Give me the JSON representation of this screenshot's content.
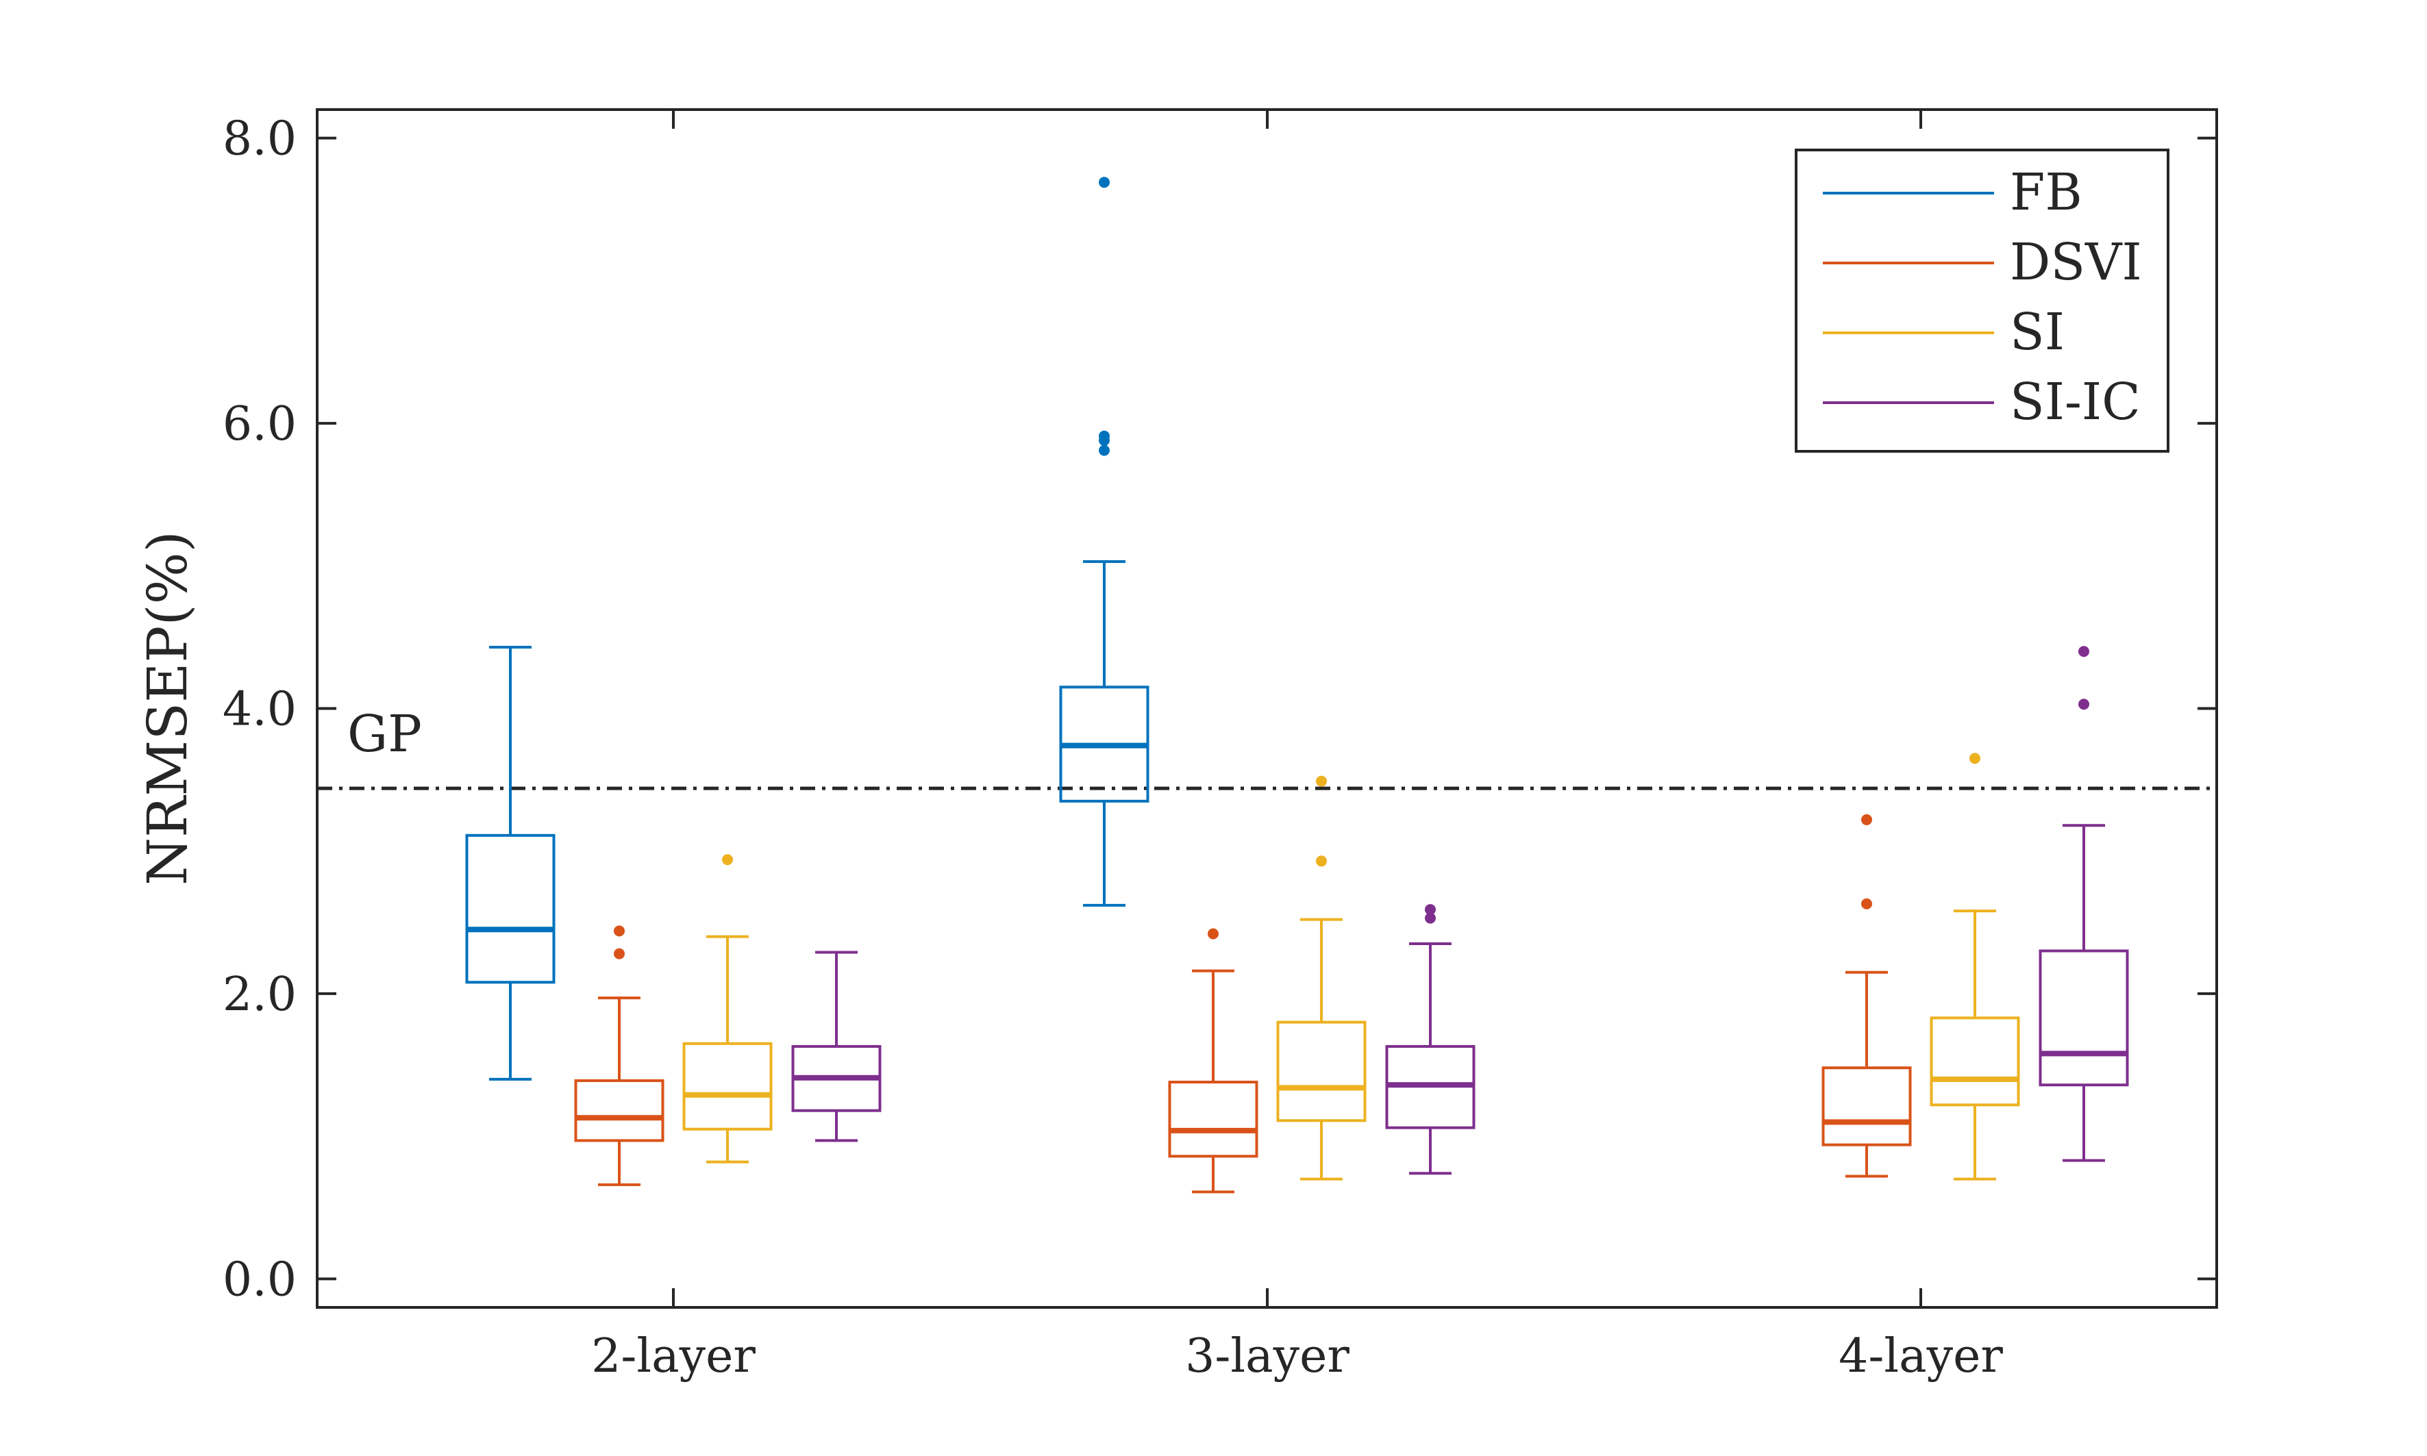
{
  "chart_data": {
    "type": "boxplot",
    "title": "",
    "xlabel": "",
    "ylabel": "NRMSEP(%)",
    "ylim": [
      -0.2,
      8.2
    ],
    "yticks": [
      0.0,
      2.0,
      4.0,
      6.0,
      8.0
    ],
    "ytick_labels": [
      "0.0",
      "2.0",
      "4.0",
      "6.0",
      "8.0"
    ],
    "categories": [
      "2-layer",
      "3-layer",
      "4-layer"
    ],
    "legend_position": "top-right",
    "reference_line": {
      "label": "GP",
      "value": 3.44,
      "style": "dash-dot"
    },
    "series": [
      {
        "name": "FB",
        "color": "#0072BD",
        "boxes": [
          {
            "whisker_low": 1.4,
            "q1": 2.08,
            "median": 2.45,
            "q3": 3.11,
            "whisker_high": 4.43,
            "outliers": []
          },
          {
            "whisker_low": 2.62,
            "q1": 3.35,
            "median": 3.74,
            "q3": 4.15,
            "whisker_high": 5.03,
            "outliers": [
              7.69,
              5.91,
              5.88,
              5.81
            ]
          },
          null
        ]
      },
      {
        "name": "DSVI",
        "color": "#D95319",
        "boxes": [
          {
            "whisker_low": 0.66,
            "q1": 0.97,
            "median": 1.13,
            "q3": 1.39,
            "whisker_high": 1.97,
            "outliers": [
              2.44,
              2.28
            ]
          },
          {
            "whisker_low": 0.61,
            "q1": 0.86,
            "median": 1.04,
            "q3": 1.38,
            "whisker_high": 2.16,
            "outliers": [
              2.42
            ]
          },
          {
            "whisker_low": 0.72,
            "q1": 0.94,
            "median": 1.1,
            "q3": 1.48,
            "whisker_high": 2.15,
            "outliers": [
              3.22,
              2.63
            ]
          }
        ]
      },
      {
        "name": "SI",
        "color": "#EDB120",
        "boxes": [
          {
            "whisker_low": 0.82,
            "q1": 1.05,
            "median": 1.29,
            "q3": 1.65,
            "whisker_high": 2.4,
            "outliers": [
              2.94
            ]
          },
          {
            "whisker_low": 0.7,
            "q1": 1.11,
            "median": 1.34,
            "q3": 1.8,
            "whisker_high": 2.52,
            "outliers": [
              3.49,
              2.93
            ]
          },
          {
            "whisker_low": 0.7,
            "q1": 1.22,
            "median": 1.4,
            "q3": 1.83,
            "whisker_high": 2.58,
            "outliers": [
              3.65
            ]
          }
        ]
      },
      {
        "name": "SI-IC",
        "color": "#7E2F8E",
        "boxes": [
          {
            "whisker_low": 0.97,
            "q1": 1.18,
            "median": 1.41,
            "q3": 1.63,
            "whisker_high": 2.29,
            "outliers": []
          },
          {
            "whisker_low": 0.74,
            "q1": 1.06,
            "median": 1.36,
            "q3": 1.63,
            "whisker_high": 2.35,
            "outliers": [
              2.59,
              2.53
            ]
          },
          {
            "whisker_low": 0.83,
            "q1": 1.36,
            "median": 1.58,
            "q3": 2.3,
            "whisker_high": 3.18,
            "outliers": [
              4.4,
              4.03
            ]
          }
        ]
      }
    ]
  }
}
